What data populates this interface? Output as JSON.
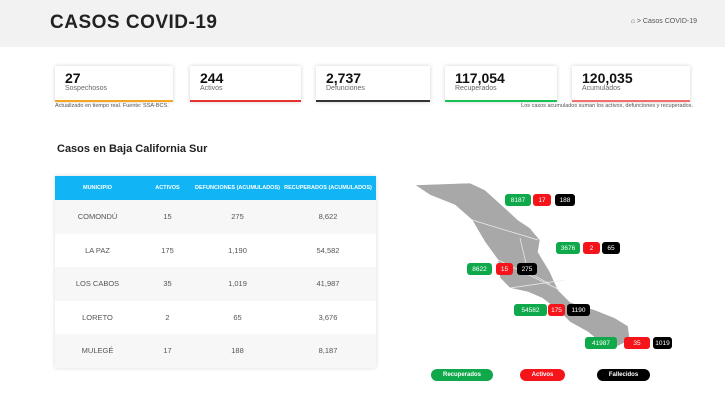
{
  "header": {
    "title": "CASOS COVID-19",
    "breadcrumb_home": "⌂",
    "breadcrumb_sep": ">",
    "breadcrumb_current": "Casos COVID-19"
  },
  "stats": [
    {
      "value": "27",
      "label": "Sospechosos",
      "color": "#f5a623"
    },
    {
      "value": "244",
      "label": "Activos",
      "color": "#e8322f"
    },
    {
      "value": "2,737",
      "label": "Defunciones",
      "color": "#333333"
    },
    {
      "value": "117,054",
      "label": "Recuperados",
      "color": "#19c155"
    },
    {
      "value": "120,035",
      "label": "Acumulados",
      "color": "#f07070"
    }
  ],
  "notes": {
    "left": "Actualizado en tiempo real. Fuente: SSA-BCS.",
    "right": "Los casos acumulados suman los activos, defunciones y recuperados."
  },
  "section_title": "Casos en Baja California Sur",
  "table": {
    "headers": [
      "MUNICIPIO",
      "ACTIVOS",
      "DEFUNCIONES (ACUMULADOS)",
      "RECUPERADOS (ACUMULADOS)"
    ],
    "rows": [
      [
        "COMONDÚ",
        "15",
        "275",
        "8,622"
      ],
      [
        "LA PAZ",
        "175",
        "1,190",
        "54,582"
      ],
      [
        "LOS CABOS",
        "35",
        "1,019",
        "41,987"
      ],
      [
        "LORETO",
        "2",
        "65",
        "3,676"
      ],
      [
        "MULEGÉ",
        "17",
        "188",
        "8,187"
      ]
    ]
  },
  "map": {
    "badges": [
      [
        "8187",
        "17",
        "188"
      ],
      [
        "3676",
        "2",
        "65"
      ],
      [
        "8622",
        "15",
        "275"
      ],
      [
        "54582",
        "175",
        "1190"
      ],
      [
        "41987",
        "35",
        "1019"
      ]
    ],
    "legend": [
      "Recuperados",
      "Activos",
      "Fallecidos"
    ]
  }
}
